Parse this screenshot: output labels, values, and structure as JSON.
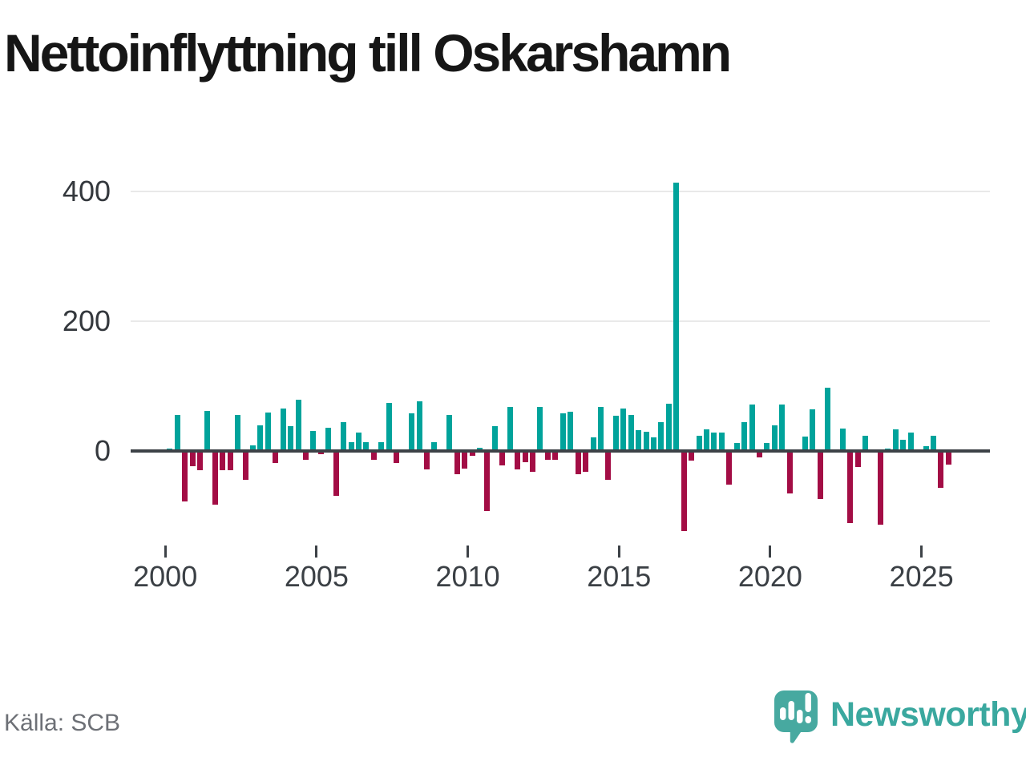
{
  "title": "Nettoinflyttning till Oskarshamn",
  "source": {
    "label": "Källa: SCB"
  },
  "branding": {
    "name": "Newsworthy",
    "icon": "newsworthy-logo"
  },
  "colors": {
    "positive": "#00a39b",
    "negative": "#a30d45",
    "axis": "#3d4247",
    "grid": "#e9e9e9",
    "title": "#161616",
    "tick_label": "#3b4045",
    "source_text": "#6d7076",
    "brand": "#3aa89f"
  },
  "chart_data": {
    "type": "bar",
    "title": "Nettoinflyttning till Oskarshamn",
    "ylabel": "",
    "xlabel": "",
    "unit": "net migration per quarter",
    "grid": "horizontal",
    "ylim": [
      -140,
      440
    ],
    "yticks": [
      0,
      200,
      400
    ],
    "xticks": [
      "2000",
      "2005",
      "2010",
      "2015",
      "2020",
      "2025"
    ],
    "categories": [
      "2000 Q1",
      "2000 Q2",
      "2000 Q3",
      "2000 Q4",
      "2001 Q1",
      "2001 Q2",
      "2001 Q3",
      "2001 Q4",
      "2002 Q1",
      "2002 Q2",
      "2002 Q3",
      "2002 Q4",
      "2003 Q1",
      "2003 Q2",
      "2003 Q3",
      "2003 Q4",
      "2004 Q1",
      "2004 Q2",
      "2004 Q3",
      "2004 Q4",
      "2005 Q1",
      "2005 Q2",
      "2005 Q3",
      "2005 Q4",
      "2006 Q1",
      "2006 Q2",
      "2006 Q3",
      "2006 Q4",
      "2007 Q1",
      "2007 Q2",
      "2007 Q3",
      "2007 Q4",
      "2008 Q1",
      "2008 Q2",
      "2008 Q3",
      "2008 Q4",
      "2009 Q1",
      "2009 Q2",
      "2009 Q3",
      "2009 Q4",
      "2010 Q1",
      "2010 Q2",
      "2010 Q3",
      "2010 Q4",
      "2011 Q1",
      "2011 Q2",
      "2011 Q3",
      "2011 Q4",
      "2012 Q1",
      "2012 Q2",
      "2012 Q3",
      "2012 Q4",
      "2013 Q1",
      "2013 Q2",
      "2013 Q3",
      "2013 Q4",
      "2014 Q1",
      "2014 Q2",
      "2014 Q3",
      "2014 Q4",
      "2015 Q1",
      "2015 Q2",
      "2015 Q3",
      "2015 Q4",
      "2016 Q1",
      "2016 Q2",
      "2016 Q3",
      "2016 Q4",
      "2017 Q1",
      "2017 Q2",
      "2017 Q3",
      "2017 Q4",
      "2018 Q1",
      "2018 Q2",
      "2018 Q3",
      "2018 Q4",
      "2019 Q1",
      "2019 Q2",
      "2019 Q3",
      "2019 Q4",
      "2020 Q1",
      "2020 Q2",
      "2020 Q3",
      "2020 Q4",
      "2021 Q1",
      "2021 Q2",
      "2021 Q3",
      "2021 Q4",
      "2022 Q1",
      "2022 Q2",
      "2022 Q3",
      "2022 Q4",
      "2023 Q1",
      "2023 Q2",
      "2023 Q3",
      "2023 Q4",
      "2024 Q1",
      "2024 Q2",
      "2024 Q3",
      "2024 Q4",
      "2025 Q1",
      "2025 Q2",
      "2025 Q3",
      "2025 Q4"
    ],
    "values": [
      4,
      55,
      -78,
      -24,
      -30,
      62,
      -83,
      -30,
      -30,
      55,
      -45,
      9,
      40,
      59,
      -18,
      65,
      38,
      79,
      -14,
      31,
      -5,
      36,
      -69,
      44,
      13,
      29,
      13,
      -13,
      13,
      74,
      -18,
      0,
      58,
      76,
      -28,
      13,
      0,
      55,
      -36,
      -27,
      -8,
      5,
      -92,
      38,
      -22,
      68,
      -28,
      -17,
      -32,
      68,
      -14,
      -14,
      58,
      61,
      -36,
      -32,
      21,
      68,
      -44,
      54,
      66,
      55,
      32,
      30,
      21,
      45,
      73,
      413,
      -123,
      -15,
      23,
      33,
      28,
      29,
      -52,
      12,
      44,
      72,
      -10,
      12,
      39,
      71,
      -66,
      3,
      22,
      64,
      -74,
      97,
      0,
      35,
      -111,
      -25,
      24,
      3,
      -114,
      4,
      33,
      17,
      29,
      0,
      7,
      23,
      -57,
      -21
    ]
  }
}
